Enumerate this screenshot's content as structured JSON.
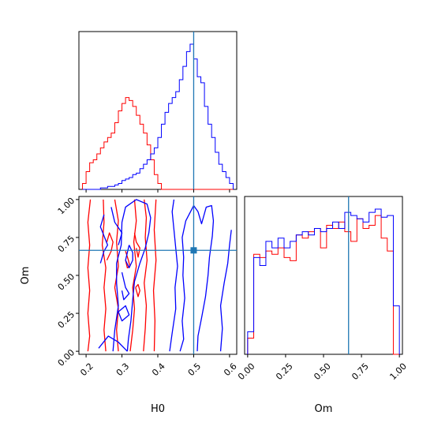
{
  "chart_data": {
    "type": "corner",
    "colors": {
      "series_a": "#0000ff",
      "series_b": "#ff0000",
      "truth": "#1f77b4"
    },
    "truth": {
      "H0": 0.5,
      "Om": 0.665
    },
    "axes": {
      "H0": {
        "label": "H0",
        "range": [
          0.18,
          0.62
        ],
        "ticks": [
          0.2,
          0.3,
          0.4,
          0.5,
          0.6
        ],
        "tick_labels": [
          "0.2",
          "0.3",
          "0.4",
          "0.5",
          "0.6"
        ]
      },
      "Om": {
        "label": "Om",
        "range": [
          -0.02,
          1.02
        ],
        "ticks": [
          0.0,
          0.25,
          0.5,
          0.75,
          1.0
        ],
        "tick_labels": [
          "0.00",
          "0.25",
          "0.50",
          "0.75",
          "1.00"
        ]
      }
    },
    "hist_H0": {
      "bins": [
        0.19,
        0.2,
        0.21,
        0.22,
        0.23,
        0.24,
        0.25,
        0.26,
        0.27,
        0.28,
        0.29,
        0.3,
        0.31,
        0.32,
        0.33,
        0.34,
        0.35,
        0.36,
        0.37,
        0.38,
        0.39,
        0.4,
        0.41,
        0.42,
        0.43,
        0.44,
        0.45,
        0.46,
        0.47,
        0.48,
        0.49,
        0.5,
        0.51,
        0.52,
        0.53,
        0.54,
        0.55,
        0.56,
        0.57,
        0.58,
        0.59,
        0.6,
        0.61
      ],
      "series_blue": [
        0,
        0,
        0,
        0,
        0,
        1,
        1,
        2,
        2,
        3,
        4,
        6,
        7,
        8,
        10,
        11,
        14,
        17,
        20,
        24,
        28,
        35,
        44,
        52,
        58,
        62,
        66,
        74,
        83,
        93,
        98,
        88,
        76,
        72,
        56,
        44,
        35,
        25,
        17,
        12,
        8,
        4
      ],
      "series_red": [
        4,
        12,
        18,
        20,
        24,
        28,
        32,
        35,
        38,
        45,
        53,
        58,
        62,
        60,
        56,
        50,
        44,
        38,
        30,
        20,
        10,
        4,
        0,
        0,
        0,
        0,
        0,
        0,
        0,
        0,
        0,
        0,
        0,
        0,
        0,
        0,
        0,
        0,
        0,
        0,
        0,
        0
      ]
    },
    "hist_Om": {
      "bins": [
        0.0,
        0.04,
        0.08,
        0.12,
        0.16,
        0.2,
        0.24,
        0.28,
        0.32,
        0.36,
        0.4,
        0.44,
        0.48,
        0.52,
        0.56,
        0.6,
        0.64,
        0.68,
        0.72,
        0.76,
        0.8,
        0.84,
        0.88,
        0.92,
        0.96,
        1.0
      ],
      "series_blue": [
        14,
        60,
        55,
        70,
        66,
        72,
        66,
        70,
        74,
        76,
        74,
        78,
        76,
        78,
        82,
        78,
        88,
        86,
        84,
        82,
        88,
        90,
        85,
        86,
        30
      ],
      "series_red": [
        10,
        62,
        60,
        64,
        62,
        66,
        60,
        58,
        74,
        72,
        76,
        78,
        66,
        80,
        78,
        82,
        76,
        70,
        84,
        78,
        80,
        86,
        72,
        64,
        0
      ]
    },
    "contours": {
      "series_blue": [
        [
          [
            0.462,
            0.0
          ],
          [
            0.472,
            0.08
          ],
          [
            0.468,
            0.2
          ],
          [
            0.475,
            0.35
          ],
          [
            0.47,
            0.5
          ],
          [
            0.472,
            0.62
          ],
          [
            0.468,
            0.75
          ],
          [
            0.478,
            0.86
          ],
          [
            0.5,
            0.96
          ],
          [
            0.512,
            0.92
          ],
          [
            0.522,
            0.84
          ],
          [
            0.535,
            0.95
          ],
          [
            0.55,
            0.96
          ],
          [
            0.555,
            0.86
          ],
          [
            0.552,
            0.76
          ],
          [
            0.544,
            0.62
          ],
          [
            0.54,
            0.5
          ],
          [
            0.533,
            0.36
          ],
          [
            0.522,
            0.22
          ],
          [
            0.512,
            0.1
          ],
          [
            0.51,
            0.0
          ]
        ],
        [
          [
            0.433,
            0.0
          ],
          [
            0.44,
            0.12
          ],
          [
            0.45,
            0.28
          ],
          [
            0.448,
            0.42
          ],
          [
            0.455,
            0.56
          ],
          [
            0.45,
            0.68
          ],
          [
            0.445,
            0.8
          ],
          [
            0.44,
            0.92
          ],
          [
            0.445,
            1.0
          ]
        ],
        [
          [
            0.575,
            0.0
          ],
          [
            0.58,
            0.15
          ],
          [
            0.575,
            0.3
          ],
          [
            0.585,
            0.45
          ],
          [
            0.595,
            0.58
          ],
          [
            0.6,
            0.7
          ],
          [
            0.605,
            0.8
          ]
        ],
        [
          [
            0.235,
            0.02
          ],
          [
            0.262,
            0.1
          ],
          [
            0.29,
            0.06
          ],
          [
            0.315,
            0.0
          ]
        ],
        [
          [
            0.275,
            0.0
          ],
          [
            0.28,
            0.14
          ],
          [
            0.29,
            0.3
          ],
          [
            0.285,
            0.45
          ],
          [
            0.285,
            0.58
          ],
          [
            0.298,
            0.7
          ],
          [
            0.3,
            0.85
          ],
          [
            0.31,
            0.95
          ],
          [
            0.34,
            1.0
          ],
          [
            0.37,
            0.97
          ],
          [
            0.38,
            0.88
          ],
          [
            0.375,
            0.78
          ],
          [
            0.365,
            0.68
          ],
          [
            0.35,
            0.58
          ],
          [
            0.335,
            0.46
          ],
          [
            0.33,
            0.34
          ],
          [
            0.325,
            0.2
          ],
          [
            0.318,
            0.08
          ],
          [
            0.315,
            0.0
          ]
        ],
        [
          [
            0.24,
            0.58
          ],
          [
            0.25,
            0.66
          ],
          [
            0.26,
            0.7
          ],
          [
            0.25,
            0.76
          ],
          [
            0.24,
            0.82
          ],
          [
            0.25,
            0.9
          ]
        ],
        [
          [
            0.27,
            0.95
          ],
          [
            0.28,
            0.85
          ],
          [
            0.3,
            0.78
          ],
          [
            0.29,
            0.7
          ]
        ],
        [
          [
            0.32,
            0.7
          ],
          [
            0.33,
            0.65
          ],
          [
            0.33,
            0.6
          ],
          [
            0.32,
            0.55
          ],
          [
            0.31,
            0.6
          ],
          [
            0.32,
            0.7
          ]
        ],
        [
          [
            0.29,
            0.26
          ],
          [
            0.3,
            0.2
          ],
          [
            0.32,
            0.24
          ],
          [
            0.31,
            0.3
          ],
          [
            0.29,
            0.26
          ]
        ],
        [
          [
            0.3,
            0.52
          ],
          [
            0.31,
            0.42
          ],
          [
            0.32,
            0.38
          ],
          [
            0.305,
            0.34
          ],
          [
            0.3,
            0.4
          ]
        ]
      ],
      "series_red": [
        [
          [
            0.212,
            1.0
          ],
          [
            0.205,
            0.85
          ],
          [
            0.21,
            0.7
          ],
          [
            0.205,
            0.55
          ],
          [
            0.21,
            0.4
          ],
          [
            0.205,
            0.25
          ],
          [
            0.21,
            0.1
          ],
          [
            0.205,
            0.0
          ]
        ],
        [
          [
            0.248,
            1.0
          ],
          [
            0.25,
            0.85
          ],
          [
            0.245,
            0.7
          ],
          [
            0.255,
            0.55
          ],
          [
            0.25,
            0.42
          ],
          [
            0.255,
            0.28
          ],
          [
            0.25,
            0.14
          ],
          [
            0.255,
            0.0
          ]
        ],
        [
          [
            0.28,
            1.0
          ],
          [
            0.29,
            0.86
          ],
          [
            0.285,
            0.72
          ],
          [
            0.29,
            0.56
          ],
          [
            0.28,
            0.42
          ],
          [
            0.29,
            0.28
          ],
          [
            0.285,
            0.14
          ],
          [
            0.29,
            0.0
          ]
        ],
        [
          [
            0.323,
            0.0
          ],
          [
            0.33,
            0.14
          ],
          [
            0.335,
            0.28
          ],
          [
            0.33,
            0.42
          ],
          [
            0.34,
            0.56
          ],
          [
            0.333,
            0.72
          ],
          [
            0.34,
            0.86
          ],
          [
            0.335,
            1.0
          ]
        ],
        [
          [
            0.36,
            0.0
          ],
          [
            0.365,
            0.15
          ],
          [
            0.368,
            0.3
          ],
          [
            0.362,
            0.45
          ],
          [
            0.37,
            0.6
          ],
          [
            0.365,
            0.75
          ],
          [
            0.368,
            0.88
          ],
          [
            0.362,
            1.0
          ]
        ],
        [
          [
            0.39,
            0.0
          ],
          [
            0.392,
            0.2
          ],
          [
            0.388,
            0.4
          ],
          [
            0.395,
            0.6
          ],
          [
            0.39,
            0.8
          ],
          [
            0.395,
            1.0
          ]
        ],
        [
          [
            0.258,
            0.6
          ],
          [
            0.27,
            0.66
          ],
          [
            0.275,
            0.72
          ],
          [
            0.265,
            0.78
          ],
          [
            0.258,
            0.72
          ]
        ],
        [
          [
            0.335,
            0.78
          ],
          [
            0.34,
            0.72
          ],
          [
            0.35,
            0.68
          ],
          [
            0.345,
            0.62
          ],
          [
            0.34,
            0.68
          ]
        ],
        [
          [
            0.338,
            0.42
          ],
          [
            0.345,
            0.36
          ],
          [
            0.35,
            0.4
          ],
          [
            0.345,
            0.44
          ],
          [
            0.338,
            0.42
          ]
        ],
        [
          [
            0.31,
            0.66
          ],
          [
            0.318,
            0.6
          ],
          [
            0.322,
            0.56
          ],
          [
            0.315,
            0.55
          ],
          [
            0.31,
            0.6
          ]
        ]
      ]
    }
  }
}
